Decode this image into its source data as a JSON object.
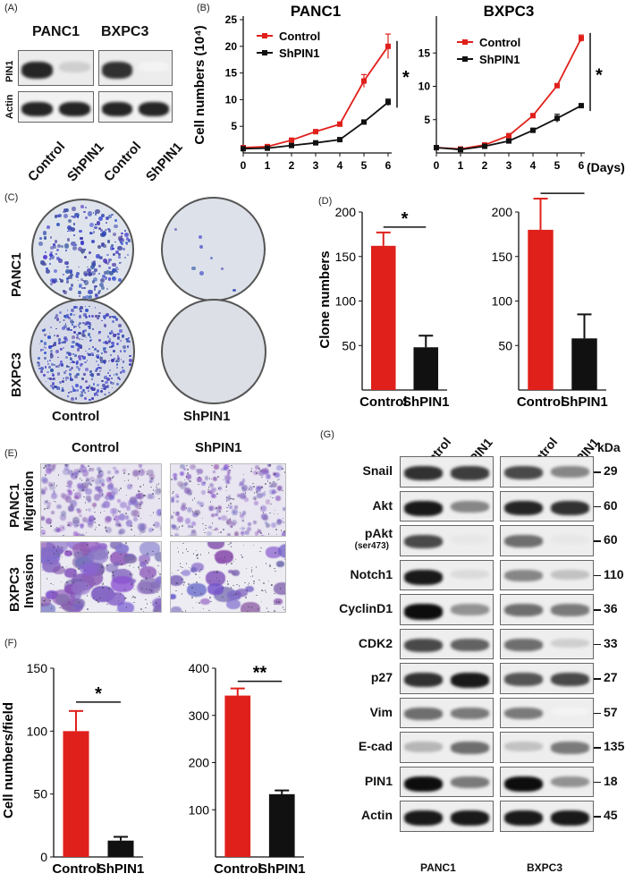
{
  "panels": {
    "A": {
      "label": "(A)",
      "col_titles": [
        "PANC1",
        "BXPC3"
      ],
      "row_labels": [
        "PIN1",
        "Actin"
      ],
      "lane_labels": [
        "Control",
        "ShPIN1",
        "Control",
        "ShPIN1"
      ],
      "pin1_intensity": [
        0.9,
        0.2,
        0.85,
        0.05
      ],
      "actin_intensity": [
        0.9,
        0.9,
        0.9,
        0.9
      ]
    },
    "B": {
      "label": "(B)",
      "ylabel": "Cell numbers (10⁴)",
      "xunit": "(Days)",
      "significance": "*",
      "legend": [
        "Control",
        "ShPIN1"
      ]
    },
    "C": {
      "label": "(C)",
      "row_labels": [
        "PANC1",
        "BXPC3"
      ],
      "col_labels": [
        "Control",
        "ShPIN1"
      ],
      "colony_density": [
        [
          0.55,
          0.02
        ],
        [
          0.95,
          0.0
        ]
      ]
    },
    "D": {
      "label": "(D)",
      "ylabel": "Clone numbers",
      "significance": "*"
    },
    "E": {
      "label": "(E)",
      "col_labels": [
        "Control",
        "ShPIN1"
      ],
      "row_labels": [
        [
          "PANC1",
          "Migration"
        ],
        [
          "BXPC3",
          "Invasion"
        ]
      ]
    },
    "F": {
      "label": "(F)",
      "ylabel": "Cell numbers/field",
      "significance_left": "*",
      "significance_right": "**"
    },
    "G": {
      "label": "(G)",
      "lane_labels": [
        "Control",
        "ShPIN1",
        "Control",
        "ShPIN1"
      ],
      "kda_header": "kDa",
      "groups": [
        "PANC1",
        "BXPC3"
      ],
      "rows": [
        {
          "name": "Snail",
          "sub": "",
          "kda": "29",
          "intensity": [
            0.85,
            0.8,
            0.75,
            0.5
          ]
        },
        {
          "name": "Akt",
          "sub": "",
          "kda": "60",
          "intensity": [
            0.95,
            0.5,
            0.9,
            0.85
          ]
        },
        {
          "name": "pAkt",
          "sub": "(ser473)",
          "kda": "60",
          "intensity": [
            0.75,
            0.1,
            0.6,
            0.1
          ]
        },
        {
          "name": "Notch1",
          "sub": "",
          "kda": "110",
          "intensity": [
            0.95,
            0.15,
            0.5,
            0.25
          ]
        },
        {
          "name": "CyclinD1",
          "sub": "",
          "kda": "36",
          "intensity": [
            1.0,
            0.45,
            0.6,
            0.55
          ]
        },
        {
          "name": "CDK2",
          "sub": "",
          "kda": "33",
          "intensity": [
            0.75,
            0.65,
            0.6,
            0.2
          ]
        },
        {
          "name": "p27",
          "sub": "",
          "kda": "27",
          "intensity": [
            0.85,
            0.95,
            0.7,
            0.75
          ]
        },
        {
          "name": "Vim",
          "sub": "",
          "kda": "57",
          "intensity": [
            0.6,
            0.55,
            0.55,
            0.05
          ]
        },
        {
          "name": "E-cad",
          "sub": "",
          "kda": "135",
          "intensity": [
            0.3,
            0.6,
            0.25,
            0.55
          ]
        },
        {
          "name": "PIN1",
          "sub": "",
          "kda": "18",
          "intensity": [
            1.0,
            0.55,
            1.0,
            0.45
          ]
        },
        {
          "name": "Actin",
          "sub": "",
          "kda": "45",
          "intensity": [
            0.95,
            0.95,
            0.95,
            0.95
          ]
        }
      ]
    }
  },
  "chart_data": [
    {
      "id": "B-PANC1",
      "type": "line",
      "title": "PANC1",
      "xlabel": "",
      "ylabel": "Cell numbers (10⁴)",
      "x": [
        0,
        1,
        2,
        3,
        4,
        5,
        6
      ],
      "xticks": [
        "0",
        "1",
        "2",
        "3",
        "4",
        "5",
        "6"
      ],
      "ylim": [
        0,
        25
      ],
      "yticks": [
        5,
        10,
        15,
        20,
        25
      ],
      "series": [
        {
          "name": "Control",
          "color": "#e0201b",
          "values": [
            1,
            1.2,
            2.4,
            4.0,
            5.4,
            13.5,
            20.0
          ],
          "err": [
            0,
            0,
            0.3,
            0.3,
            0.4,
            1.2,
            2.3
          ]
        },
        {
          "name": "ShPIN1",
          "color": "#111111",
          "values": [
            0.8,
            0.9,
            1.4,
            1.9,
            2.5,
            5.8,
            9.5
          ],
          "err": [
            0,
            0,
            0.1,
            0.1,
            0.2,
            0.3,
            0.6
          ]
        }
      ],
      "annotation": "*"
    },
    {
      "id": "B-BXPC3",
      "type": "line",
      "title": "BXPC3",
      "xlabel": "(Days)",
      "ylabel": "",
      "x": [
        0,
        1,
        2,
        3,
        4,
        5,
        6
      ],
      "xticks": [
        "0",
        "1",
        "2",
        "3",
        "4",
        "5",
        "6"
      ],
      "ylim": [
        0,
        20
      ],
      "yticks": [
        5,
        10,
        15
      ],
      "series": [
        {
          "name": "Control",
          "color": "#e0201b",
          "values": [
            0.8,
            0.6,
            1.2,
            2.6,
            5.6,
            10.1,
            17.2
          ],
          "err": [
            0,
            0,
            0.1,
            0.2,
            0.3,
            0.2,
            0.5
          ]
        },
        {
          "name": "ShPIN1",
          "color": "#111111",
          "values": [
            0.8,
            0.5,
            1.0,
            1.8,
            3.4,
            5.2,
            7.1
          ],
          "err": [
            0,
            0,
            0.1,
            0.1,
            0.3,
            0.6,
            0.2
          ]
        }
      ],
      "annotation": "*"
    },
    {
      "id": "D-PANC1",
      "type": "bar",
      "categories": [
        "Control",
        "ShPIN1"
      ],
      "ylabel": "Clone numbers",
      "ylim": [
        0,
        200
      ],
      "yticks": [
        50,
        100,
        150,
        200
      ],
      "values": [
        162,
        48
      ],
      "err": [
        15,
        13
      ],
      "colors": [
        "#e0201b",
        "#111111"
      ],
      "annotation": "*"
    },
    {
      "id": "D-BXPC3",
      "type": "bar",
      "categories": [
        "Control",
        "ShPIN1"
      ],
      "ylabel": "",
      "ylim": [
        0,
        200
      ],
      "yticks": [
        50,
        100,
        150,
        200
      ],
      "values": [
        180,
        58
      ],
      "err": [
        35,
        27
      ],
      "colors": [
        "#e0201b",
        "#111111"
      ],
      "annotation": "*"
    },
    {
      "id": "F-PANC1",
      "type": "bar",
      "categories": [
        "Control",
        "ShPIN1"
      ],
      "ylabel": "Cell numbers/field",
      "ylim": [
        0,
        150
      ],
      "yticks": [
        0,
        50,
        100,
        150
      ],
      "values": [
        100,
        13
      ],
      "err": [
        16,
        3
      ],
      "colors": [
        "#e0201b",
        "#111111"
      ],
      "annotation": "*"
    },
    {
      "id": "F-BXPC3",
      "type": "bar",
      "categories": [
        "Control",
        "ShPIN1"
      ],
      "ylabel": "",
      "ylim": [
        0,
        400
      ],
      "yticks": [
        100,
        200,
        300,
        400
      ],
      "values": [
        342,
        133
      ],
      "err": [
        15,
        8
      ],
      "colors": [
        "#e0201b",
        "#111111"
      ],
      "annotation": "**"
    }
  ]
}
